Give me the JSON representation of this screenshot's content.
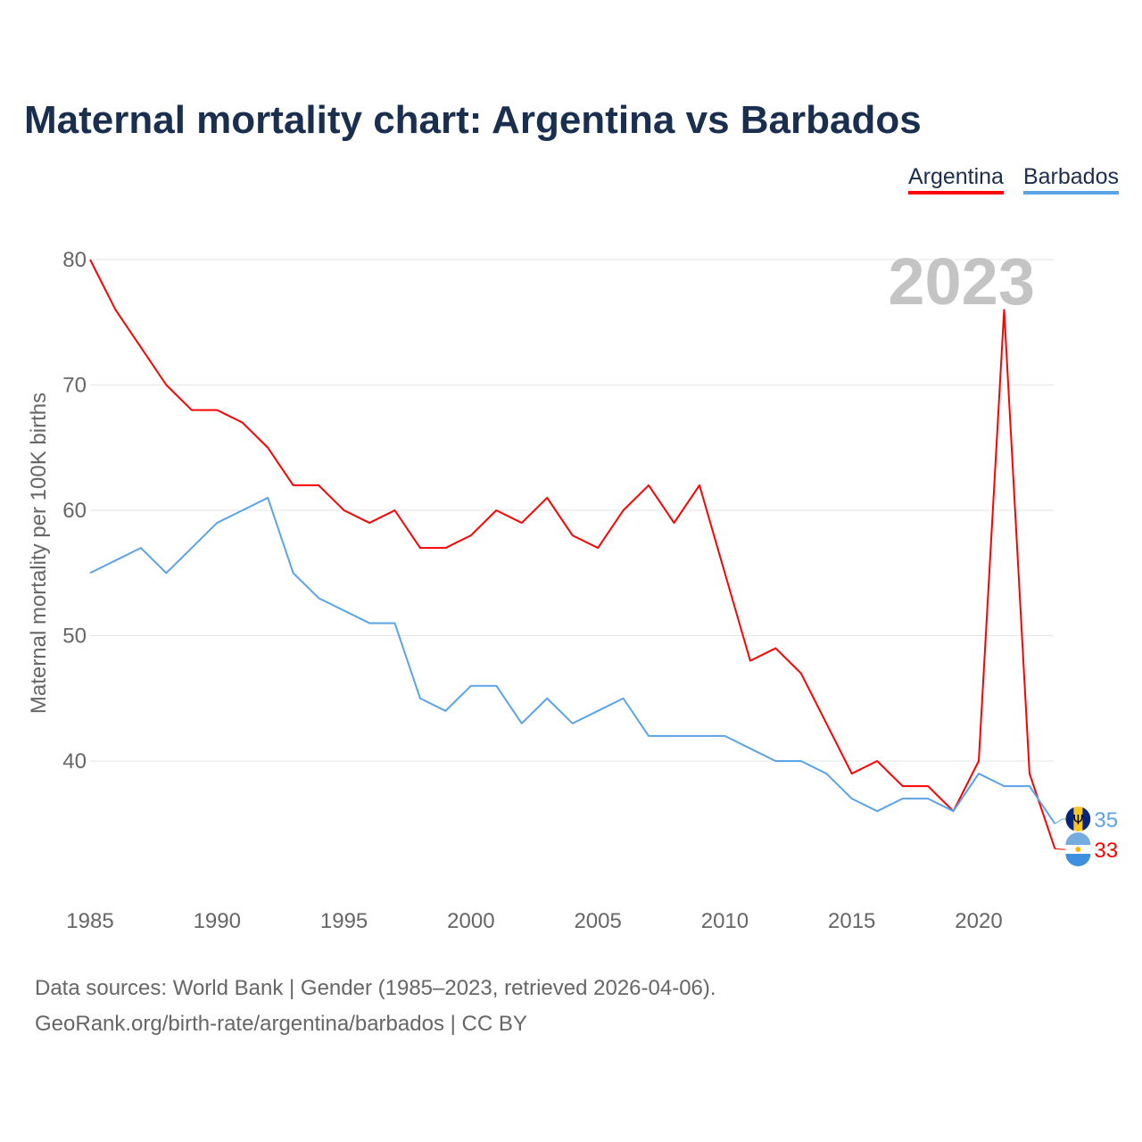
{
  "title": "Maternal mortality chart: Argentina vs Barbados",
  "footer": {
    "line1": "Data sources: World Bank | Gender (1985–2023, retrieved 2026-04-06).",
    "line2": "GeoRank.org/birth-rate/argentina/barbados | CC BY"
  },
  "chart_data": {
    "type": "line",
    "title": "Maternal mortality chart: Argentina vs Barbados",
    "xlabel": "",
    "ylabel": "Maternal mortality per 100K births",
    "year_label": "2023",
    "xlim": [
      1985,
      2023
    ],
    "ylim": [
      30,
      80
    ],
    "x_ticks": [
      1985,
      1990,
      1995,
      2000,
      2005,
      2010,
      2015,
      2020
    ],
    "y_ticks": [
      40,
      50,
      60,
      70,
      80
    ],
    "grid": true,
    "legend_position": "top-right",
    "x": [
      1985,
      1986,
      1987,
      1988,
      1989,
      1990,
      1991,
      1992,
      1993,
      1994,
      1995,
      1996,
      1997,
      1998,
      1999,
      2000,
      2001,
      2002,
      2003,
      2004,
      2005,
      2006,
      2007,
      2008,
      2009,
      2010,
      2011,
      2012,
      2013,
      2014,
      2015,
      2016,
      2017,
      2018,
      2019,
      2020,
      2021,
      2022,
      2023
    ],
    "series": [
      {
        "name": "Argentina",
        "color": "#ff0000",
        "end_label": "33",
        "flag": "argentina-flag-icon",
        "values": [
          80,
          76,
          73,
          70,
          68,
          68,
          67,
          65,
          62,
          62,
          60,
          59,
          60,
          57,
          57,
          58,
          60,
          59,
          61,
          58,
          57,
          60,
          62,
          59,
          62,
          55,
          48,
          49,
          47,
          43,
          39,
          40,
          38,
          38,
          36,
          40,
          76,
          39,
          33
        ]
      },
      {
        "name": "Barbados",
        "color": "#5ba3e8",
        "end_label": "35",
        "flag": "barbados-flag-icon",
        "values": [
          55,
          56,
          57,
          55,
          57,
          59,
          60,
          61,
          55,
          53,
          52,
          51,
          51,
          45,
          44,
          46,
          46,
          43,
          45,
          43,
          44,
          45,
          42,
          42,
          42,
          42,
          41,
          40,
          40,
          39,
          37,
          36,
          37,
          37,
          36,
          39,
          38,
          38,
          35
        ]
      }
    ]
  }
}
